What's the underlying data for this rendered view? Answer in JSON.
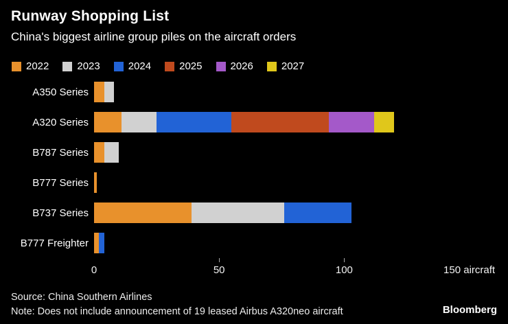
{
  "header": {
    "title": "Runway Shopping List",
    "subtitle": "China's biggest airline group piles on the aircraft orders"
  },
  "chart_data": {
    "type": "bar",
    "orientation": "horizontal",
    "stacked": true,
    "title": "Runway Shopping List",
    "subtitle": "China's biggest airline group piles on the aircraft orders",
    "categories": [
      "A350 Series",
      "A320 Series",
      "B787 Series",
      "B777 Series",
      "B737 Series",
      "B777 Freighter"
    ],
    "series": [
      {
        "name": "2022",
        "color": "#E8912C",
        "values": [
          4,
          11,
          4,
          1,
          39,
          2
        ]
      },
      {
        "name": "2023",
        "color": "#D1D1D1",
        "values": [
          4,
          14,
          6,
          0,
          37,
          0
        ]
      },
      {
        "name": "2024",
        "color": "#2263D6",
        "values": [
          0,
          30,
          0,
          0,
          27,
          2
        ]
      },
      {
        "name": "2025",
        "color": "#C04A1E",
        "values": [
          0,
          39,
          0,
          0,
          0,
          0
        ]
      },
      {
        "name": "2026",
        "color": "#A459C9",
        "values": [
          0,
          18,
          0,
          0,
          0,
          0
        ]
      },
      {
        "name": "2027",
        "color": "#E0C71B",
        "values": [
          0,
          8,
          0,
          0,
          0,
          0
        ]
      }
    ],
    "xmax": 160,
    "xlim": [
      0,
      160
    ],
    "ticks": [
      {
        "value": 0,
        "label": "0",
        "tick": false
      },
      {
        "value": 50,
        "label": "50",
        "tick": true
      },
      {
        "value": 100,
        "label": "100",
        "tick": true
      },
      {
        "value": 150,
        "label": "150 aircraft",
        "tick": false
      }
    ],
    "legend_position": "top",
    "grid": false,
    "background": "#000000"
  },
  "footer": {
    "source": "Source: China Southern Airlines",
    "note": "Note: Does not include announcement of 19 leased Airbus A320neo aircraft",
    "brand": "Bloomberg"
  }
}
